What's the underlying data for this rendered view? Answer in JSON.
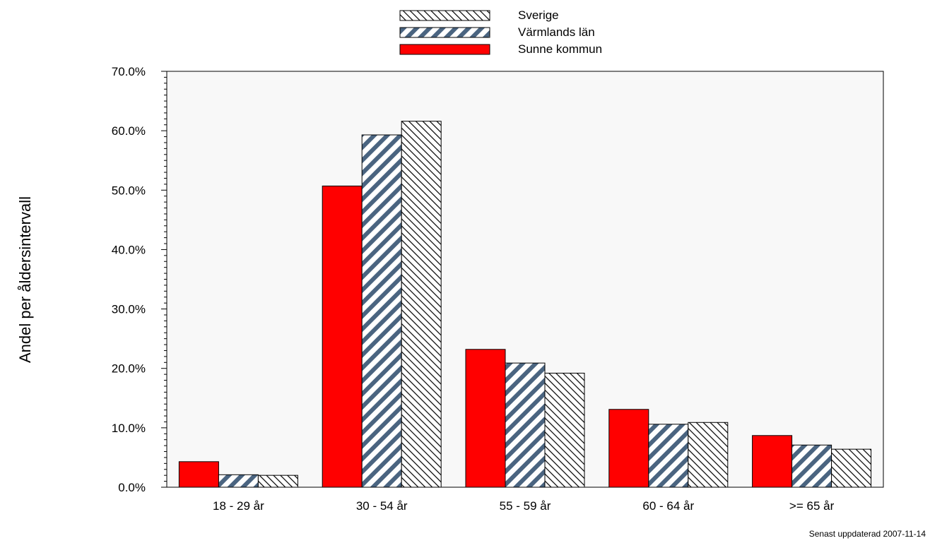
{
  "chart_data": {
    "type": "bar",
    "title": "",
    "xlabel": "",
    "ylabel": "Andel per åldersintervall",
    "categories": [
      "18 - 29 år",
      "30 - 54 år",
      "55 - 59 år",
      "60 - 64 år",
      ">= 65 år"
    ],
    "series": [
      {
        "name": "Sunne kommun",
        "values": [
          4.3,
          50.7,
          23.2,
          13.1,
          8.7
        ],
        "color": "#ff0000",
        "pattern": "solid"
      },
      {
        "name": "Värmlands län",
        "values": [
          2.1,
          59.3,
          20.9,
          10.6,
          7.1
        ],
        "color": "#4a6480",
        "pattern": "thick-diagonal-stripes"
      },
      {
        "name": "Sverige",
        "values": [
          2.0,
          61.6,
          19.2,
          10.9,
          6.4
        ],
        "color": "#000000",
        "pattern": "thin-diagonal-hatch"
      }
    ],
    "legend_order": [
      "Sverige",
      "Värmlands län",
      "Sunne kommun"
    ],
    "legend_position": "top",
    "ylim": [
      0,
      70
    ],
    "yticks": [
      "0.0%",
      "10.0%",
      "20.0%",
      "30.0%",
      "40.0%",
      "50.0%",
      "60.0%",
      "70.0%"
    ],
    "grid": false,
    "plot_background": "#f8f8f8"
  },
  "footer": {
    "updated_text": "Senast uppdaterad 2007-11-14"
  }
}
